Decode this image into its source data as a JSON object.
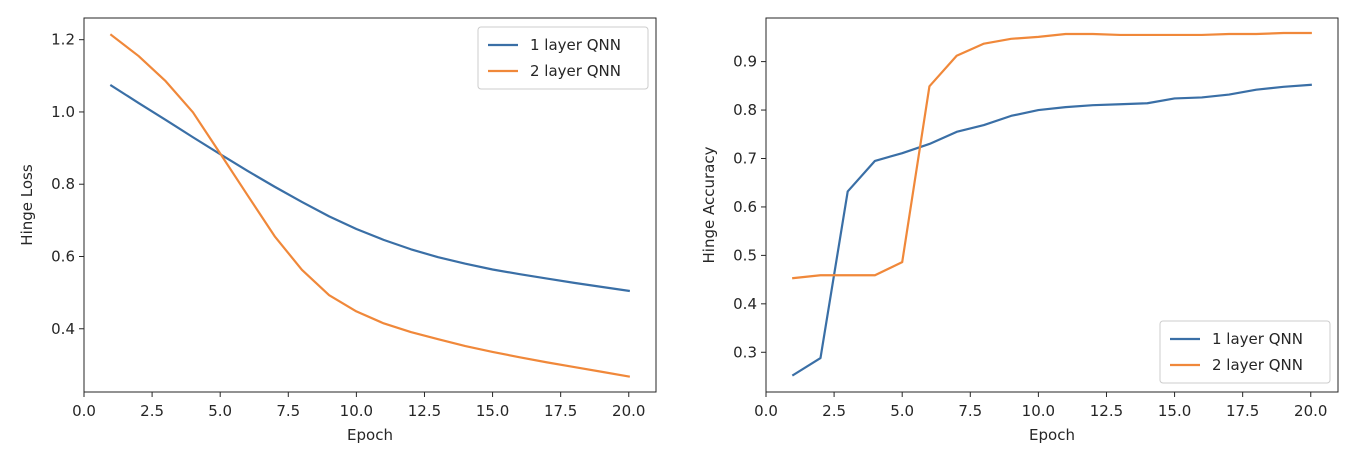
{
  "colors": {
    "series1": "#3a6fa6",
    "series2": "#f0883a",
    "axes": "#262626"
  },
  "chart_data": [
    {
      "type": "line",
      "title": "",
      "xlabel": "Epoch",
      "ylabel": "Hinge Loss",
      "xlim": [
        0.0,
        21.0
      ],
      "ylim": [
        0.225,
        1.26
      ],
      "xticks": [
        0.0,
        2.5,
        5.0,
        7.5,
        10.0,
        12.5,
        15.0,
        17.5,
        20.0
      ],
      "xtick_labels": [
        "0.0",
        "2.5",
        "5.0",
        "7.5",
        "10.0",
        "12.5",
        "15.0",
        "17.5",
        "20.0"
      ],
      "yticks": [
        0.4,
        0.6,
        0.8,
        1.0,
        1.2
      ],
      "ytick_labels": [
        "0.4",
        "0.6",
        "0.8",
        "1.0",
        "1.2"
      ],
      "grid": false,
      "legend_position": "top-right",
      "x": [
        1,
        2,
        3,
        4,
        5,
        6,
        7,
        8,
        9,
        10,
        11,
        12,
        13,
        14,
        15,
        16,
        17,
        18,
        19,
        20
      ],
      "series": [
        {
          "name": "1 layer QNN",
          "values": [
            1.073,
            1.025,
            0.978,
            0.93,
            0.883,
            0.837,
            0.793,
            0.751,
            0.711,
            0.676,
            0.646,
            0.62,
            0.598,
            0.58,
            0.564,
            0.551,
            0.539,
            0.527,
            0.516,
            0.505
          ]
        },
        {
          "name": "2 layer QNN",
          "values": [
            1.213,
            1.155,
            1.085,
            0.999,
            0.885,
            0.77,
            0.656,
            0.563,
            0.493,
            0.448,
            0.415,
            0.391,
            0.371,
            0.352,
            0.336,
            0.321,
            0.307,
            0.294,
            0.281,
            0.268
          ]
        }
      ]
    },
    {
      "type": "line",
      "title": "",
      "xlabel": "Epoch",
      "ylabel": "Hinge Accuracy",
      "xlim": [
        0.0,
        21.0
      ],
      "ylim": [
        0.218,
        0.99
      ],
      "xticks": [
        0.0,
        2.5,
        5.0,
        7.5,
        10.0,
        12.5,
        15.0,
        17.5,
        20.0
      ],
      "xtick_labels": [
        "0.0",
        "2.5",
        "5.0",
        "7.5",
        "10.0",
        "12.5",
        "15.0",
        "17.5",
        "20.0"
      ],
      "yticks": [
        0.3,
        0.4,
        0.5,
        0.6,
        0.7,
        0.8,
        0.9
      ],
      "ytick_labels": [
        "0.3",
        "0.4",
        "0.5",
        "0.6",
        "0.7",
        "0.8",
        "0.9"
      ],
      "grid": false,
      "legend_position": "lower-right",
      "x": [
        1,
        2,
        3,
        4,
        5,
        6,
        7,
        8,
        9,
        10,
        11,
        12,
        13,
        14,
        15,
        16,
        17,
        18,
        19,
        20
      ],
      "series": [
        {
          "name": "1 layer QNN",
          "values": [
            0.253,
            0.288,
            0.632,
            0.695,
            0.711,
            0.73,
            0.755,
            0.769,
            0.788,
            0.8,
            0.806,
            0.81,
            0.812,
            0.814,
            0.824,
            0.826,
            0.832,
            0.842,
            0.848,
            0.852
          ]
        },
        {
          "name": "2 layer QNN",
          "values": [
            0.453,
            0.459,
            0.459,
            0.459,
            0.486,
            0.849,
            0.912,
            0.937,
            0.947,
            0.951,
            0.957,
            0.957,
            0.955,
            0.955,
            0.955,
            0.955,
            0.957,
            0.957,
            0.959,
            0.959
          ]
        }
      ]
    }
  ]
}
